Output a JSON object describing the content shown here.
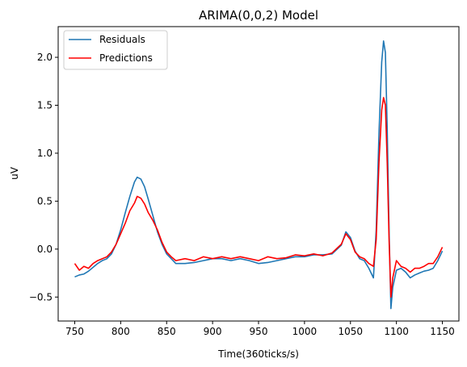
{
  "chart_data": {
    "type": "line",
    "title": "ARIMA(0,0,2) Model",
    "xlabel": "Time(360ticks/s)",
    "ylabel": "uV",
    "xlim": [
      732,
      1168
    ],
    "ylim": [
      -0.75,
      2.32
    ],
    "x_ticks": [
      750,
      800,
      850,
      900,
      950,
      1000,
      1050,
      1100,
      1150
    ],
    "x_tick_labels": [
      "750",
      "800",
      "850",
      "900",
      "950",
      "1000",
      "1050",
      "1100",
      "1150"
    ],
    "y_ticks": [
      -0.5,
      0.0,
      0.5,
      1.0,
      1.5,
      2.0
    ],
    "y_tick_labels": [
      "−0.5",
      "0.0",
      "0.5",
      "1.0",
      "1.5",
      "2.0"
    ],
    "grid": false,
    "legend_position": "top-left",
    "series": [
      {
        "name": "Residuals",
        "color": "#1f77b4",
        "points": [
          [
            750,
            -0.29
          ],
          [
            755,
            -0.27
          ],
          [
            760,
            -0.26
          ],
          [
            765,
            -0.23
          ],
          [
            770,
            -0.19
          ],
          [
            775,
            -0.15
          ],
          [
            780,
            -0.12
          ],
          [
            785,
            -0.1
          ],
          [
            790,
            -0.05
          ],
          [
            795,
            0.05
          ],
          [
            800,
            0.2
          ],
          [
            805,
            0.38
          ],
          [
            810,
            0.55
          ],
          [
            815,
            0.7
          ],
          [
            818,
            0.75
          ],
          [
            822,
            0.73
          ],
          [
            826,
            0.65
          ],
          [
            830,
            0.52
          ],
          [
            835,
            0.35
          ],
          [
            840,
            0.18
          ],
          [
            845,
            0.05
          ],
          [
            850,
            -0.05
          ],
          [
            855,
            -0.1
          ],
          [
            860,
            -0.15
          ],
          [
            870,
            -0.15
          ],
          [
            880,
            -0.14
          ],
          [
            890,
            -0.12
          ],
          [
            900,
            -0.1
          ],
          [
            910,
            -0.1
          ],
          [
            920,
            -0.12
          ],
          [
            930,
            -0.1
          ],
          [
            940,
            -0.12
          ],
          [
            950,
            -0.15
          ],
          [
            960,
            -0.14
          ],
          [
            970,
            -0.12
          ],
          [
            980,
            -0.1
          ],
          [
            990,
            -0.08
          ],
          [
            1000,
            -0.08
          ],
          [
            1010,
            -0.06
          ],
          [
            1020,
            -0.06
          ],
          [
            1030,
            -0.05
          ],
          [
            1040,
            0.04
          ],
          [
            1045,
            0.18
          ],
          [
            1050,
            0.12
          ],
          [
            1055,
            -0.02
          ],
          [
            1060,
            -0.1
          ],
          [
            1065,
            -0.12
          ],
          [
            1070,
            -0.2
          ],
          [
            1075,
            -0.3
          ],
          [
            1078,
            0.2
          ],
          [
            1081,
            1.2
          ],
          [
            1084,
            1.95
          ],
          [
            1086,
            2.17
          ],
          [
            1088,
            2.05
          ],
          [
            1090,
            1.25
          ],
          [
            1092,
            0.2
          ],
          [
            1094,
            -0.62
          ],
          [
            1096,
            -0.4
          ],
          [
            1100,
            -0.22
          ],
          [
            1105,
            -0.2
          ],
          [
            1110,
            -0.24
          ],
          [
            1115,
            -0.3
          ],
          [
            1120,
            -0.27
          ],
          [
            1125,
            -0.25
          ],
          [
            1130,
            -0.23
          ],
          [
            1135,
            -0.22
          ],
          [
            1140,
            -0.2
          ],
          [
            1145,
            -0.12
          ],
          [
            1150,
            -0.02
          ]
        ]
      },
      {
        "name": "Predictions",
        "color": "#ff0000",
        "points": [
          [
            750,
            -0.15
          ],
          [
            755,
            -0.22
          ],
          [
            760,
            -0.18
          ],
          [
            765,
            -0.2
          ],
          [
            770,
            -0.15
          ],
          [
            775,
            -0.12
          ],
          [
            780,
            -0.1
          ],
          [
            785,
            -0.08
          ],
          [
            790,
            -0.03
          ],
          [
            795,
            0.05
          ],
          [
            800,
            0.16
          ],
          [
            805,
            0.27
          ],
          [
            810,
            0.4
          ],
          [
            815,
            0.48
          ],
          [
            818,
            0.55
          ],
          [
            822,
            0.53
          ],
          [
            826,
            0.47
          ],
          [
            830,
            0.38
          ],
          [
            835,
            0.3
          ],
          [
            840,
            0.2
          ],
          [
            845,
            0.07
          ],
          [
            850,
            -0.03
          ],
          [
            855,
            -0.08
          ],
          [
            860,
            -0.12
          ],
          [
            870,
            -0.1
          ],
          [
            880,
            -0.12
          ],
          [
            890,
            -0.08
          ],
          [
            900,
            -0.1
          ],
          [
            910,
            -0.08
          ],
          [
            920,
            -0.1
          ],
          [
            930,
            -0.08
          ],
          [
            940,
            -0.1
          ],
          [
            950,
            -0.12
          ],
          [
            960,
            -0.08
          ],
          [
            970,
            -0.1
          ],
          [
            980,
            -0.09
          ],
          [
            990,
            -0.06
          ],
          [
            1000,
            -0.07
          ],
          [
            1010,
            -0.05
          ],
          [
            1020,
            -0.07
          ],
          [
            1030,
            -0.04
          ],
          [
            1040,
            0.05
          ],
          [
            1045,
            0.16
          ],
          [
            1050,
            0.1
          ],
          [
            1055,
            -0.03
          ],
          [
            1060,
            -0.08
          ],
          [
            1065,
            -0.1
          ],
          [
            1070,
            -0.15
          ],
          [
            1075,
            -0.18
          ],
          [
            1078,
            0.1
          ],
          [
            1081,
            0.9
          ],
          [
            1084,
            1.45
          ],
          [
            1086,
            1.58
          ],
          [
            1088,
            1.5
          ],
          [
            1090,
            0.9
          ],
          [
            1092,
            0.1
          ],
          [
            1094,
            -0.5
          ],
          [
            1096,
            -0.3
          ],
          [
            1100,
            -0.12
          ],
          [
            1105,
            -0.18
          ],
          [
            1110,
            -0.2
          ],
          [
            1115,
            -0.24
          ],
          [
            1120,
            -0.2
          ],
          [
            1125,
            -0.2
          ],
          [
            1130,
            -0.18
          ],
          [
            1135,
            -0.15
          ],
          [
            1140,
            -0.15
          ],
          [
            1145,
            -0.08
          ],
          [
            1150,
            0.02
          ]
        ]
      }
    ]
  }
}
